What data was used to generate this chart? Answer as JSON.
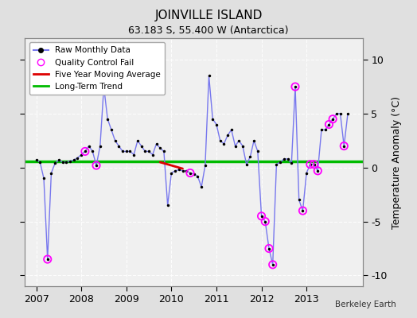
{
  "title": "JOINVILLE ISLAND",
  "subtitle": "63.183 S, 55.400 W (Antarctica)",
  "ylabel": "Temperature Anomaly (°C)",
  "credit": "Berkeley Earth",
  "xlim": [
    2006.75,
    2014.25
  ],
  "ylim": [
    -11,
    12
  ],
  "yticks": [
    -10,
    -5,
    0,
    5,
    10
  ],
  "background_color": "#e0e0e0",
  "plot_bg": "#f0f0f0",
  "grid_color": "#ffffff",
  "raw_x": [
    2007.0,
    2007.083,
    2007.167,
    2007.25,
    2007.333,
    2007.417,
    2007.5,
    2007.583,
    2007.667,
    2007.75,
    2007.833,
    2007.917,
    2008.0,
    2008.083,
    2008.167,
    2008.25,
    2008.333,
    2008.417,
    2008.5,
    2008.583,
    2008.667,
    2008.75,
    2008.833,
    2008.917,
    2009.0,
    2009.083,
    2009.167,
    2009.25,
    2009.333,
    2009.417,
    2009.5,
    2009.583,
    2009.667,
    2009.75,
    2009.833,
    2009.917,
    2010.0,
    2010.083,
    2010.167,
    2010.25,
    2010.333,
    2010.417,
    2010.5,
    2010.583,
    2010.667,
    2010.75,
    2010.833,
    2010.917,
    2011.0,
    2011.083,
    2011.167,
    2011.25,
    2011.333,
    2011.417,
    2011.5,
    2011.583,
    2011.667,
    2011.75,
    2011.833,
    2011.917,
    2012.0,
    2012.083,
    2012.167,
    2012.25,
    2012.333,
    2012.417,
    2012.5,
    2012.583,
    2012.667,
    2012.75,
    2012.833,
    2012.917,
    2013.0,
    2013.083,
    2013.167,
    2013.25,
    2013.333,
    2013.417,
    2013.5,
    2013.583,
    2013.667,
    2013.75,
    2013.833,
    2013.917
  ],
  "raw_y": [
    0.7,
    0.5,
    -1.0,
    -8.5,
    -0.5,
    0.4,
    0.7,
    0.5,
    0.5,
    0.6,
    0.7,
    0.9,
    1.2,
    1.5,
    2.0,
    1.5,
    0.2,
    2.0,
    7.5,
    4.5,
    3.5,
    2.5,
    2.0,
    1.5,
    1.5,
    1.5,
    1.2,
    2.5,
    2.0,
    1.5,
    1.5,
    1.2,
    2.2,
    1.8,
    1.5,
    -3.5,
    -0.5,
    -0.3,
    -0.2,
    -0.3,
    -0.3,
    -0.5,
    -0.6,
    -0.8,
    -1.8,
    0.2,
    8.5,
    4.5,
    4.0,
    2.5,
    2.2,
    3.0,
    3.5,
    2.0,
    2.5,
    2.0,
    0.3,
    1.0,
    2.5,
    1.5,
    -4.5,
    -5.0,
    -7.5,
    -9.0,
    0.3,
    0.5,
    0.8,
    0.8,
    0.4,
    7.5,
    -3.0,
    -4.0,
    -0.5,
    0.3,
    0.3,
    -0.3,
    3.5,
    3.5,
    4.0,
    4.5,
    5.0,
    5.0,
    2.0,
    5.0
  ],
  "qc_fail_x": [
    2007.25,
    2008.083,
    2008.333,
    2010.417,
    2012.0,
    2012.083,
    2012.167,
    2012.25,
    2012.75,
    2012.917,
    2013.083,
    2013.167,
    2013.25,
    2013.5,
    2013.583,
    2013.833
  ],
  "qc_fail_y": [
    -8.5,
    1.5,
    0.2,
    -0.5,
    -4.5,
    -5.0,
    -7.5,
    -9.0,
    7.5,
    -4.0,
    0.3,
    0.3,
    -0.3,
    4.0,
    4.5,
    2.0
  ],
  "moving_avg_x": [
    2009.75,
    2009.833,
    2009.917,
    2010.0,
    2010.083,
    2010.167,
    2010.25
  ],
  "moving_avg_y": [
    0.5,
    0.4,
    0.3,
    0.2,
    0.1,
    0.0,
    -0.1
  ],
  "trend_x": [
    2006.75,
    2014.25
  ],
  "trend_y": [
    0.6,
    0.6
  ],
  "line_color": "#7777ee",
  "dot_color": "#000000",
  "qc_color": "#ff00ff",
  "ma_color": "#dd0000",
  "trend_color": "#00bb00",
  "xtick_labels": [
    "2007",
    "2008",
    "2009",
    "2010",
    "2011",
    "2012",
    "2013"
  ],
  "xtick_positions": [
    2007,
    2008,
    2009,
    2010,
    2011,
    2012,
    2013
  ]
}
